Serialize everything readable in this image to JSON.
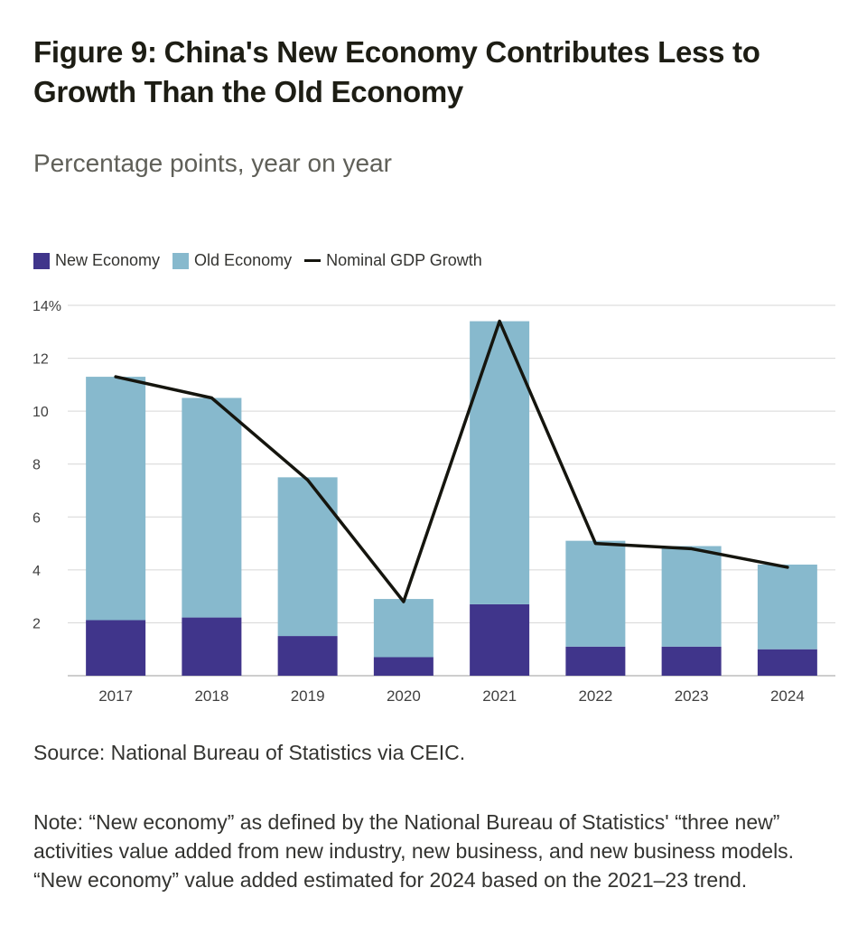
{
  "title": {
    "prefix": "Figure 9:",
    "main": "China's New Economy Contributes Less to Growth Than the Old Economy"
  },
  "subtitle": "Percentage points, year on year",
  "legend": {
    "new_economy": "New Economy",
    "old_economy": "Old Economy",
    "gdp": "Nominal GDP Growth"
  },
  "colors": {
    "new_economy": "#40358b",
    "old_economy": "#87b9cd",
    "gdp_line": "#15150e",
    "grid": "#d6d6d6",
    "axis_text": "#404040"
  },
  "chart_data": {
    "type": "bar",
    "stacked": true,
    "categories": [
      "2017",
      "2018",
      "2019",
      "2020",
      "2021",
      "2022",
      "2023",
      "2024"
    ],
    "series": [
      {
        "name": "New Economy",
        "kind": "bar",
        "values": [
          2.1,
          2.2,
          1.5,
          0.7,
          2.7,
          1.1,
          1.1,
          1.0
        ]
      },
      {
        "name": "Old Economy",
        "kind": "bar",
        "values": [
          9.2,
          8.3,
          6.0,
          2.2,
          10.7,
          4.0,
          3.8,
          3.2
        ]
      },
      {
        "name": "Nominal GDP Growth",
        "kind": "line",
        "values": [
          11.3,
          10.5,
          7.4,
          2.8,
          13.4,
          5.0,
          4.8,
          4.1
        ]
      }
    ],
    "ylim": [
      0,
      14
    ],
    "yticks": [
      2,
      4,
      6,
      8,
      10,
      12,
      14
    ],
    "ytick_labels": [
      "2",
      "4",
      "6",
      "8",
      "10",
      "12",
      "14%"
    ],
    "grid": true,
    "legend_position": "top-left"
  },
  "source": "Source: National Bureau of Statistics via CEIC.",
  "note": "Note: “New economy” as defined by the National Bureau of Statistics' “three new” activities value added from new industry, new business, and new business models. “New economy” value added estimated for 2024 based on the 2021–23 trend."
}
